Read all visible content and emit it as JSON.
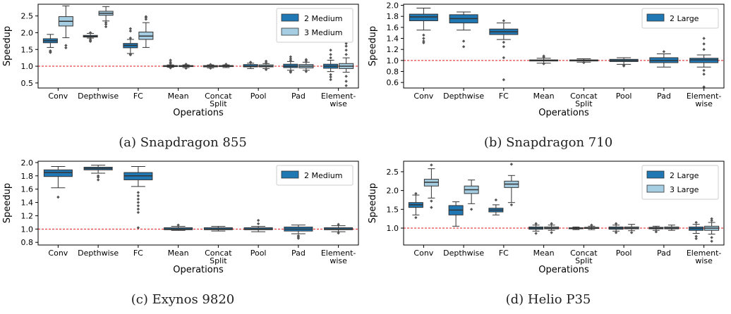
{
  "chart_data": [
    {
      "type": "box",
      "caption": "(a) Snapdragon 855",
      "ylabel": "Speedup",
      "xlabel": "Operations",
      "ylim": [
        0.35,
        2.85
      ],
      "yticks": [
        0.5,
        1.0,
        1.5,
        2.0,
        2.5
      ],
      "reference_line": 1.0,
      "categories": [
        "Conv",
        "Depthwise",
        "FC",
        "Mean",
        "Concat Split",
        "Pool",
        "Pad",
        "Element-wise"
      ],
      "legend": {
        "position": "top-right"
      },
      "series": [
        {
          "name": "2 Medium",
          "color": "#1f77b4",
          "boxes": [
            {
              "whislo": 1.56,
              "q1": 1.7,
              "med": 1.76,
              "q3": 1.82,
              "whishi": 1.95,
              "fliers": [
                1.46,
                1.44,
                1.41
              ]
            },
            {
              "whislo": 1.84,
              "q1": 1.87,
              "med": 1.89,
              "q3": 1.92,
              "whishi": 1.98,
              "fliers": [
                1.8,
                1.76,
                1.74,
                2.0
              ]
            },
            {
              "whislo": 1.38,
              "q1": 1.55,
              "med": 1.62,
              "q3": 1.68,
              "whishi": 1.8,
              "fliers": [
                1.36,
                1.34,
                1.84,
                2.05,
                2.12
              ]
            },
            {
              "whislo": 0.97,
              "q1": 0.99,
              "med": 1.0,
              "q3": 1.02,
              "whishi": 1.04,
              "fliers": [
                1.08,
                1.12,
                1.18,
                0.95
              ]
            },
            {
              "whislo": 0.95,
              "q1": 0.98,
              "med": 1.0,
              "q3": 1.02,
              "whishi": 1.04,
              "fliers": [
                0.94,
                1.05
              ]
            },
            {
              "whislo": 0.93,
              "q1": 0.98,
              "med": 1.0,
              "q3": 1.05,
              "whishi": 1.09,
              "fliers": [
                1.12
              ]
            },
            {
              "whislo": 0.88,
              "q1": 0.96,
              "med": 1.0,
              "q3": 1.06,
              "whishi": 1.14,
              "fliers": [
                0.85,
                0.82,
                1.17,
                1.22,
                1.28
              ]
            },
            {
              "whislo": 0.84,
              "q1": 0.94,
              "med": 1.0,
              "q3": 1.06,
              "whishi": 1.18,
              "fliers": [
                0.75,
                0.68,
                0.6,
                1.25,
                1.35,
                1.48
              ]
            }
          ]
        },
        {
          "name": "3 Medium",
          "color": "#a6cee3",
          "boxes": [
            {
              "whislo": 1.85,
              "q1": 2.2,
              "med": 2.34,
              "q3": 2.48,
              "whishi": 2.8,
              "fliers": [
                1.62,
                1.55
              ]
            },
            {
              "whislo": 2.35,
              "q1": 2.52,
              "med": 2.58,
              "q3": 2.64,
              "whishi": 2.78,
              "fliers": [
                2.3,
                2.25,
                2.18
              ]
            },
            {
              "whislo": 1.56,
              "q1": 1.8,
              "med": 1.9,
              "q3": 2.02,
              "whishi": 2.3,
              "fliers": [
                2.4,
                2.45,
                2.48
              ]
            },
            {
              "whislo": 0.96,
              "q1": 0.99,
              "med": 1.0,
              "q3": 1.02,
              "whishi": 1.04,
              "fliers": [
                0.94,
                1.06
              ]
            },
            {
              "whislo": 0.96,
              "q1": 0.99,
              "med": 1.0,
              "q3": 1.02,
              "whishi": 1.04,
              "fliers": [
                1.06
              ]
            },
            {
              "whislo": 0.93,
              "q1": 0.98,
              "med": 1.0,
              "q3": 1.04,
              "whishi": 1.08,
              "fliers": [
                0.9,
                1.1,
                1.15
              ]
            },
            {
              "whislo": 0.88,
              "q1": 0.95,
              "med": 1.0,
              "q3": 1.05,
              "whishi": 1.12,
              "fliers": [
                0.84,
                1.16,
                1.2
              ]
            },
            {
              "whislo": 0.82,
              "q1": 0.93,
              "med": 1.0,
              "q3": 1.08,
              "whishi": 1.25,
              "fliers": [
                0.7,
                0.55,
                0.42,
                1.35,
                1.48,
                1.6,
                1.68
              ]
            }
          ]
        }
      ]
    },
    {
      "type": "box",
      "caption": "(b) Snapdragon 710",
      "ylabel": "Speedup",
      "xlabel": "Operations",
      "ylim": [
        0.5,
        2.02
      ],
      "yticks": [
        0.6,
        0.8,
        1.0,
        1.2,
        1.4,
        1.6,
        1.8,
        2.0
      ],
      "reference_line": 1.0,
      "categories": [
        "Conv",
        "Depthwise",
        "FC",
        "Mean",
        "Concat Split",
        "Pool",
        "Pad",
        "Element-wise"
      ],
      "legend": {
        "position": "top-right"
      },
      "series": [
        {
          "name": "2 Large",
          "color": "#1f77b4",
          "boxes": [
            {
              "whislo": 1.55,
              "q1": 1.72,
              "med": 1.79,
              "q3": 1.84,
              "whishi": 1.95,
              "fliers": [
                1.46,
                1.4,
                1.35,
                1.32
              ]
            },
            {
              "whislo": 1.55,
              "q1": 1.68,
              "med": 1.76,
              "q3": 1.83,
              "whishi": 1.88,
              "fliers": [
                1.35,
                1.25
              ]
            },
            {
              "whislo": 1.38,
              "q1": 1.47,
              "med": 1.52,
              "q3": 1.57,
              "whishi": 1.68,
              "fliers": [
                1.72,
                1.33,
                1.25,
                1.05,
                0.65
              ]
            },
            {
              "whislo": 0.95,
              "q1": 0.99,
              "med": 1.0,
              "q3": 1.01,
              "whishi": 1.04,
              "fliers": [
                0.94,
                1.06,
                1.08
              ]
            },
            {
              "whislo": 0.97,
              "q1": 0.99,
              "med": 1.0,
              "q3": 1.01,
              "whishi": 1.03,
              "fliers": [
                0.96
              ]
            },
            {
              "whislo": 0.93,
              "q1": 0.98,
              "med": 1.0,
              "q3": 1.02,
              "whishi": 1.05,
              "fliers": [
                0.91,
                0.9
              ]
            },
            {
              "whislo": 0.88,
              "q1": 0.96,
              "med": 1.0,
              "q3": 1.05,
              "whishi": 1.12,
              "fliers": [
                1.16
              ]
            },
            {
              "whislo": 0.88,
              "q1": 0.96,
              "med": 1.01,
              "q3": 1.04,
              "whishi": 1.1,
              "fliers": [
                0.82,
                0.75,
                0.52,
                1.2,
                1.3,
                1.4
              ]
            }
          ]
        }
      ]
    },
    {
      "type": "box",
      "caption": "(c) Exynos 9820",
      "ylabel": "Speedup",
      "xlabel": "Operations",
      "ylim": [
        0.76,
        2.02
      ],
      "yticks": [
        0.8,
        1.0,
        1.2,
        1.4,
        1.6,
        1.8,
        2.0
      ],
      "reference_line": 1.0,
      "categories": [
        "Conv",
        "Depthwise",
        "FC",
        "Mean",
        "Concat Split",
        "Pool",
        "Pad",
        "Element-wise"
      ],
      "legend": {
        "position": "top-right"
      },
      "series": [
        {
          "name": "2 Medium",
          "color": "#1f77b4",
          "boxes": [
            {
              "whislo": 1.62,
              "q1": 1.79,
              "med": 1.85,
              "q3": 1.89,
              "whishi": 1.94,
              "fliers": [
                1.48
              ]
            },
            {
              "whislo": 1.84,
              "q1": 1.89,
              "med": 1.91,
              "q3": 1.93,
              "whishi": 1.96,
              "fliers": [
                1.8,
                1.78,
                1.74
              ]
            },
            {
              "whislo": 1.64,
              "q1": 1.74,
              "med": 1.8,
              "q3": 1.85,
              "whishi": 1.94,
              "fliers": [
                1.55,
                1.5,
                1.45,
                1.4,
                1.35,
                1.3,
                1.25,
                1.02
              ]
            },
            {
              "whislo": 0.98,
              "q1": 0.99,
              "med": 1.0,
              "q3": 1.02,
              "whishi": 1.04,
              "fliers": [
                1.06
              ]
            },
            {
              "whislo": 0.97,
              "q1": 0.99,
              "med": 1.0,
              "q3": 1.02,
              "whishi": 1.04,
              "fliers": []
            },
            {
              "whislo": 0.96,
              "q1": 0.99,
              "med": 1.0,
              "q3": 1.02,
              "whishi": 1.04,
              "fliers": [
                1.08,
                1.13
              ]
            },
            {
              "whislo": 0.93,
              "q1": 0.97,
              "med": 1.0,
              "q3": 1.03,
              "whishi": 1.06,
              "fliers": [
                0.9,
                0.88,
                0.86
              ]
            },
            {
              "whislo": 0.96,
              "q1": 0.99,
              "med": 1.0,
              "q3": 1.02,
              "whishi": 1.05,
              "fliers": [
                0.94,
                1.07
              ]
            }
          ]
        }
      ]
    },
    {
      "type": "box",
      "caption": "(d) Helio P35",
      "ylabel": "Speedup",
      "xlabel": "Operations",
      "ylim": [
        0.55,
        2.78
      ],
      "yticks": [
        1.0,
        1.5,
        2.0,
        2.5
      ],
      "reference_line": 1.0,
      "categories": [
        "Conv",
        "Depthwise",
        "FC",
        "Mean",
        "Concat Split",
        "Pool",
        "Pad",
        "Element-wise"
      ],
      "legend": {
        "position": "top-right"
      },
      "series": [
        {
          "name": "2 Large",
          "color": "#1f77b4",
          "boxes": [
            {
              "whislo": 1.35,
              "q1": 1.55,
              "med": 1.62,
              "q3": 1.68,
              "whishi": 1.88,
              "fliers": [
                1.92,
                1.28
              ]
            },
            {
              "whislo": 1.05,
              "q1": 1.35,
              "med": 1.48,
              "q3": 1.6,
              "whishi": 1.7,
              "fliers": []
            },
            {
              "whislo": 1.35,
              "q1": 1.43,
              "med": 1.48,
              "q3": 1.53,
              "whishi": 1.62,
              "fliers": [
                1.75
              ]
            },
            {
              "whislo": 0.92,
              "q1": 0.97,
              "med": 1.0,
              "q3": 1.03,
              "whishi": 1.08,
              "fliers": [
                0.86,
                1.12
              ]
            },
            {
              "whislo": 0.96,
              "q1": 0.99,
              "med": 1.0,
              "q3": 1.01,
              "whishi": 1.03,
              "fliers": []
            },
            {
              "whislo": 0.92,
              "q1": 0.97,
              "med": 1.0,
              "q3": 1.03,
              "whishi": 1.08,
              "fliers": [
                0.88,
                1.12
              ]
            },
            {
              "whislo": 0.94,
              "q1": 0.98,
              "med": 1.0,
              "q3": 1.02,
              "whishi": 1.05,
              "fliers": [
                0.9
              ]
            },
            {
              "whislo": 0.86,
              "q1": 0.94,
              "med": 0.99,
              "q3": 1.03,
              "whishi": 1.1,
              "fliers": [
                0.78,
                0.72,
                1.15
              ]
            }
          ]
        },
        {
          "name": "3 Large",
          "color": "#a6cee3",
          "boxes": [
            {
              "whislo": 1.8,
              "q1": 2.12,
              "med": 2.22,
              "q3": 2.3,
              "whishi": 2.58,
              "fliers": [
                2.68,
                1.72,
                1.55
              ]
            },
            {
              "whislo": 1.65,
              "q1": 1.92,
              "med": 2.02,
              "q3": 2.12,
              "whishi": 2.28,
              "fliers": [
                1.5
              ]
            },
            {
              "whislo": 1.68,
              "q1": 2.08,
              "med": 2.17,
              "q3": 2.25,
              "whishi": 2.4,
              "fliers": [
                2.7,
                1.62
              ]
            },
            {
              "whislo": 0.94,
              "q1": 0.98,
              "med": 1.0,
              "q3": 1.03,
              "whishi": 1.08,
              "fliers": [
                0.88,
                1.12
              ]
            },
            {
              "whislo": 0.96,
              "q1": 0.99,
              "med": 1.0,
              "q3": 1.02,
              "whishi": 1.05,
              "fliers": [
                1.08
              ]
            },
            {
              "whislo": 0.93,
              "q1": 0.98,
              "med": 1.0,
              "q3": 1.03,
              "whishi": 1.1,
              "fliers": [
                0.88
              ]
            },
            {
              "whislo": 0.94,
              "q1": 0.98,
              "med": 1.0,
              "q3": 1.03,
              "whishi": 1.08,
              "fliers": []
            },
            {
              "whislo": 0.84,
              "q1": 0.94,
              "med": 1.0,
              "q3": 1.05,
              "whishi": 1.15,
              "fliers": [
                0.75,
                0.65,
                1.2,
                1.25
              ]
            }
          ]
        }
      ]
    }
  ]
}
